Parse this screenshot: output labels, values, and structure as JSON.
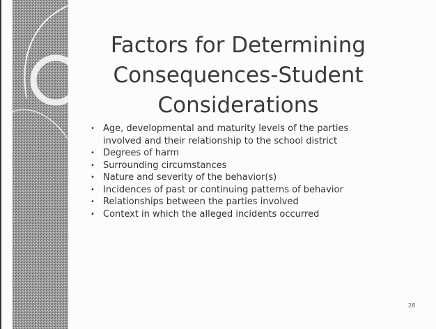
{
  "slide": {
    "title": [
      "Factors for Determining",
      "Consequences-Student",
      "Considerations"
    ],
    "bullets": [
      "Age, developmental and maturity levels of the parties involved and their relationship to the school district",
      "Degrees of harm",
      "Surrounding circumstances",
      "Nature and severity of the behavior(s)",
      "Incidences of past or continuing patterns of behavior",
      "Relationships between the parties involved",
      "Context in which the alleged incidents occurred"
    ],
    "page_number": "28"
  }
}
